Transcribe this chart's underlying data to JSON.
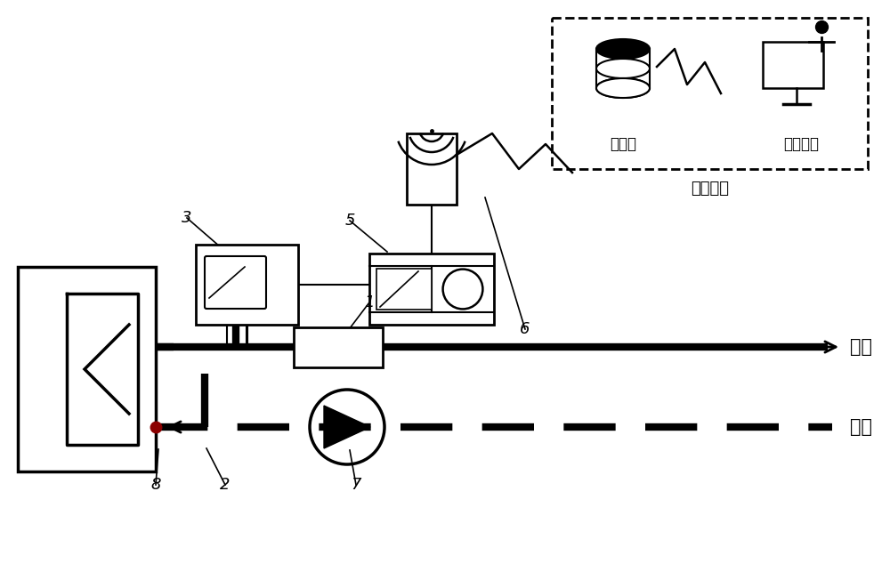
{
  "bg_color": "#ffffff",
  "supply_label": "供水",
  "return_label": "回水",
  "server_label": "服务器",
  "display_label": "显示终端",
  "monitor_label": "监控平台"
}
